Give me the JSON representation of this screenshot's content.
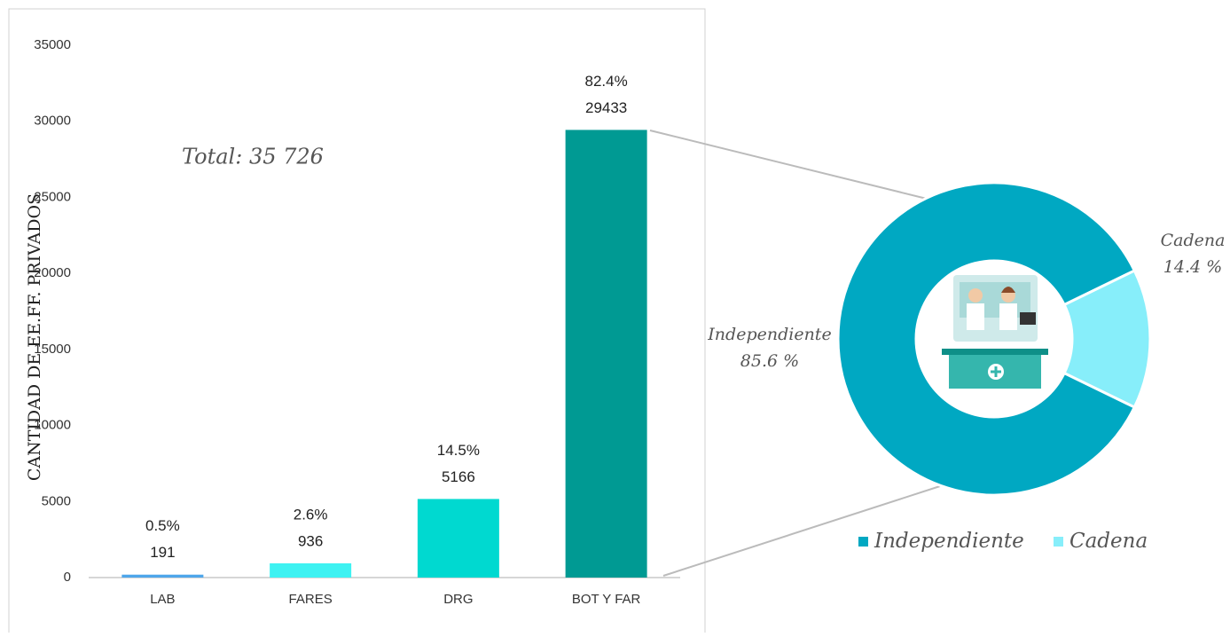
{
  "chart_data": [
    {
      "type": "bar",
      "y_label": "CANTIDAD DE EE.FF. PRIVADOS",
      "annotation": "Total: 35 726",
      "categories": [
        "LAB",
        "FARES",
        "DRG",
        "BOT Y FAR"
      ],
      "values": [
        191,
        936,
        5166,
        29433
      ],
      "shares": [
        0.5,
        2.6,
        14.5,
        82.4
      ],
      "share_labels": [
        "0.5%",
        "2.6%",
        "14.5%",
        "82.4%"
      ],
      "colors": [
        "#4ea6ea",
        "#3ef2f2",
        "#00d9d0",
        "#009a93"
      ],
      "ylim": [
        0,
        35000
      ],
      "yticks": [
        0,
        5000,
        10000,
        15000,
        20000,
        25000,
        30000,
        35000
      ]
    },
    {
      "type": "pie",
      "categories": [
        "Independiente",
        "Cadena"
      ],
      "values": [
        85.6,
        14.4
      ],
      "value_labels": [
        "85.6 %",
        "14.4 %"
      ],
      "colors": [
        "#00a8c2",
        "#87eefa"
      ],
      "legend": "bottom"
    }
  ]
}
